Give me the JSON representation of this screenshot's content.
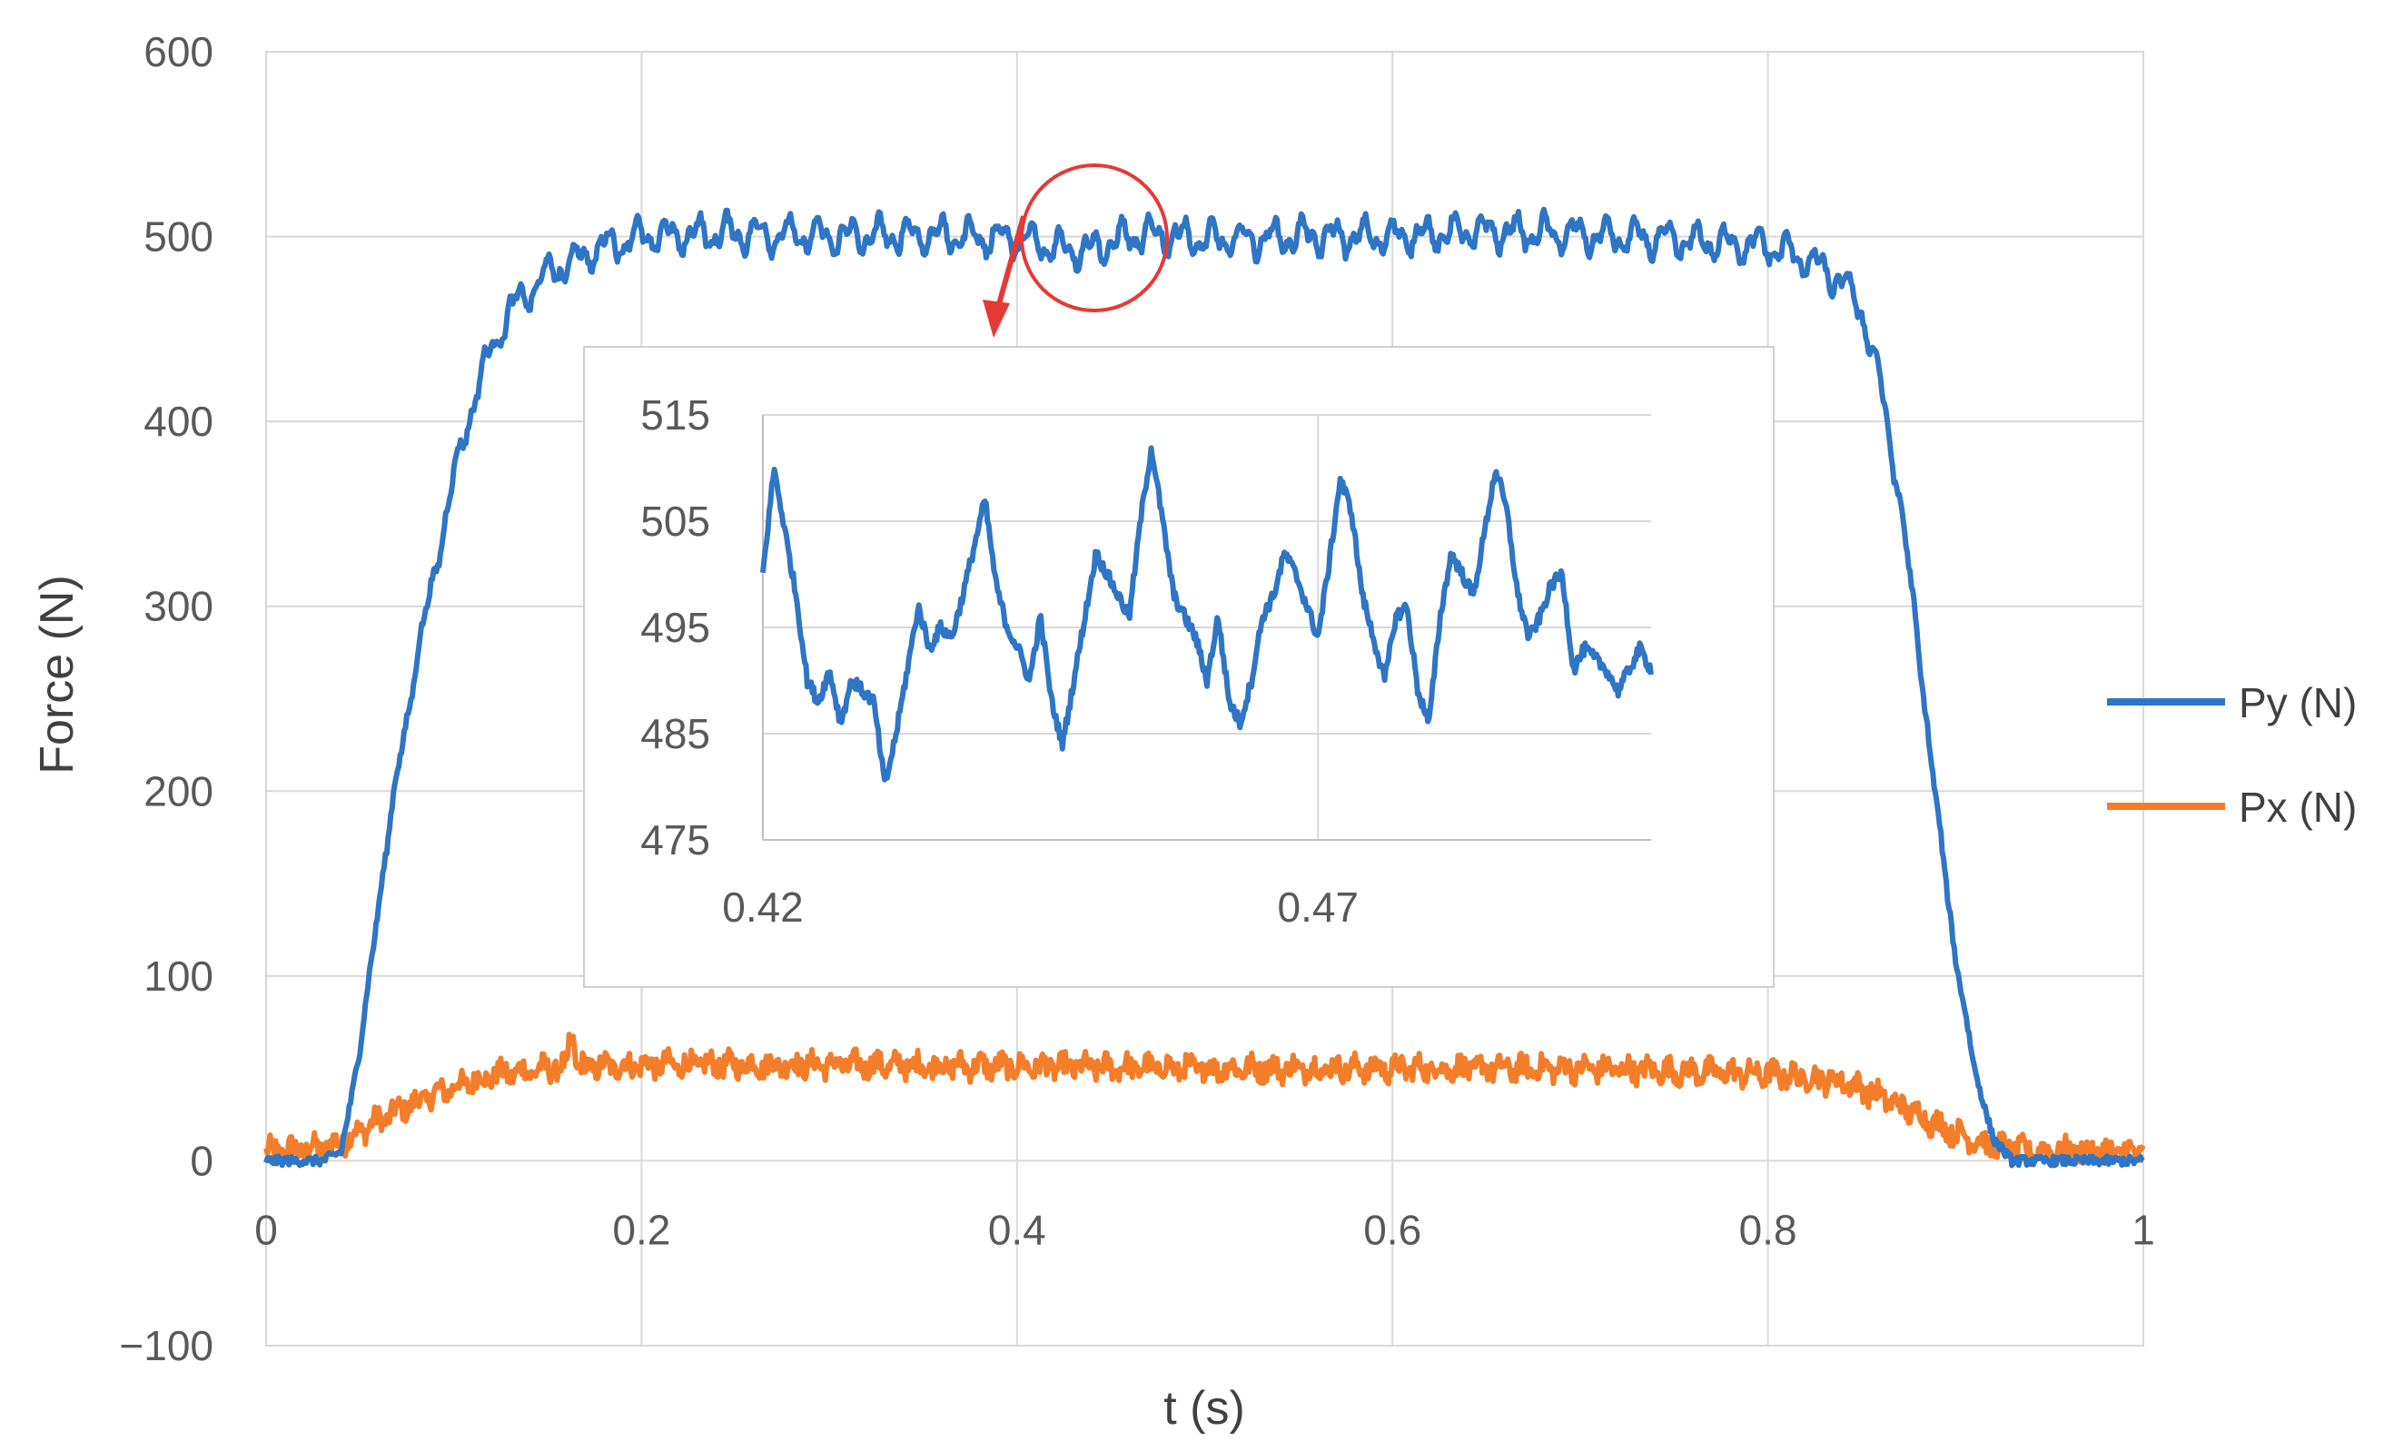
{
  "chart_data": [
    {
      "type": "line",
      "xlabel": "t (s)",
      "ylabel": "Force  (N)",
      "xlim": [
        0,
        1
      ],
      "ylim": [
        -100,
        600
      ],
      "x_ticks": [
        "0",
        "0.2",
        "0.4",
        "0.6",
        "0.8",
        "1"
      ],
      "y_ticks": [
        "600",
        "500",
        "400",
        "300",
        "200",
        "100",
        "0",
        "−100"
      ],
      "grid": true,
      "legend_position": "right",
      "series": [
        {
          "name": "Py (N)",
          "color": "#2E75C6",
          "x": [
            0,
            0.03,
            0.04,
            0.05,
            0.06,
            0.07,
            0.08,
            0.09,
            0.1,
            0.11,
            0.12,
            0.13,
            0.14,
            0.15,
            0.16,
            0.17,
            0.18,
            0.2,
            0.25,
            0.3,
            0.35,
            0.4,
            0.42,
            0.44,
            0.46,
            0.48,
            0.5,
            0.55,
            0.6,
            0.65,
            0.7,
            0.75,
            0.8,
            0.82,
            0.84,
            0.85,
            0.86,
            0.87,
            0.88,
            0.89,
            0.9,
            0.91,
            0.92,
            0.93,
            0.95,
            1
          ],
          "y": [
            0,
            0,
            5,
            60,
            140,
            210,
            270,
            320,
            370,
            410,
            440,
            460,
            470,
            480,
            485,
            490,
            495,
            500,
            502,
            500,
            501,
            499,
            494,
            493,
            500,
            501,
            498,
            500,
            500,
            503,
            501,
            498,
            495,
            488,
            475,
            460,
            420,
            360,
            280,
            190,
            110,
            50,
            12,
            0,
            0,
            0
          ]
        },
        {
          "name": "Px (N)",
          "color": "#F47D2A",
          "x": [
            0,
            0.03,
            0.04,
            0.06,
            0.08,
            0.1,
            0.12,
            0.15,
            0.2,
            0.3,
            0.4,
            0.5,
            0.6,
            0.7,
            0.8,
            0.84,
            0.86,
            0.88,
            0.9,
            0.92,
            0.94,
            1
          ],
          "y": [
            5,
            7,
            10,
            22,
            32,
            40,
            46,
            50,
            52,
            52,
            51,
            50,
            50,
            50,
            47,
            43,
            35,
            25,
            15,
            8,
            5,
            5
          ]
        }
      ]
    },
    {
      "type": "line",
      "title": "",
      "xlim": [
        0.42,
        0.5
      ],
      "ylim": [
        475,
        515
      ],
      "x_ticks": [
        "0.42",
        "0.47"
      ],
      "y_ticks": [
        "515",
        "505",
        "495",
        "485",
        "475"
      ],
      "grid": true,
      "series": [
        {
          "color": "#2E75C6",
          "x": [
            0.42,
            0.421,
            0.423,
            0.424,
            0.425,
            0.426,
            0.427,
            0.428,
            0.429,
            0.43,
            0.431,
            0.432,
            0.434,
            0.435,
            0.436,
            0.437,
            0.438,
            0.44,
            0.441,
            0.442,
            0.443,
            0.444,
            0.445,
            0.446,
            0.447,
            0.449,
            0.45,
            0.451,
            0.452,
            0.453,
            0.454,
            0.455,
            0.457,
            0.458,
            0.459,
            0.46,
            0.461,
            0.462,
            0.463,
            0.464,
            0.465,
            0.466,
            0.467,
            0.468,
            0.469,
            0.47,
            0.471,
            0.472,
            0.473,
            0.474,
            0.475,
            0.476,
            0.477,
            0.478,
            0.479,
            0.48,
            0.481,
            0.482,
            0.483,
            0.484,
            0.485,
            0.486,
            0.487,
            0.488,
            0.489,
            0.49,
            0.491,
            0.492,
            0.493,
            0.494,
            0.495,
            0.496,
            0.497,
            0.498,
            0.499,
            0.5
          ],
          "y": [
            500,
            510,
            498,
            490,
            488,
            491,
            486,
            490,
            489,
            488,
            480,
            485,
            497,
            493,
            495,
            494,
            498,
            507,
            499,
            495,
            493,
            490,
            496,
            488,
            484,
            496,
            502,
            500,
            498,
            496,
            505,
            512,
            498,
            496,
            494,
            490,
            496,
            488,
            486,
            490,
            496,
            498,
            502,
            500,
            497,
            494,
            501,
            509,
            506,
            498,
            494,
            490,
            496,
            497,
            489,
            486,
            496,
            502,
            500,
            498,
            504,
            510,
            506,
            498,
            494,
            496,
            499,
            500,
            491,
            493,
            492,
            491,
            489,
            491,
            493,
            491
          ]
        }
      ]
    }
  ],
  "legend": {
    "py_label": "Py (N)",
    "px_label": "Px (N)"
  }
}
